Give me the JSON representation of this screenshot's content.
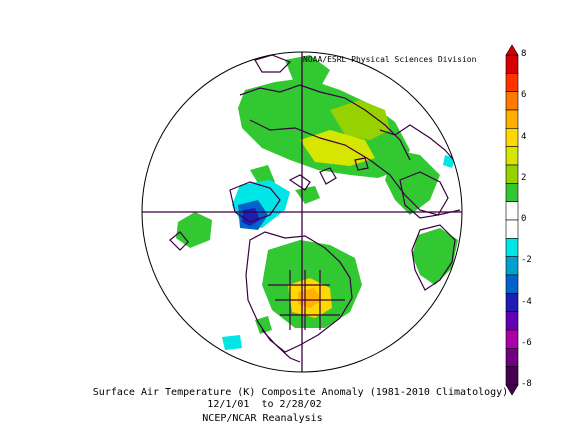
{
  "map": {
    "credit": "NOAA/ESRL Physical Sciences Division",
    "caption_line1": "Surface Air Temperature (K) Composite Anomaly (1981-2010 Climatology)",
    "caption_line2": "12/1/01  to 2/28/02",
    "caption_line3": "NCEP/NCAR Reanalysis",
    "projection": "polar-stereographic-north"
  },
  "colorbar": {
    "tick_labels": [
      "8",
      "6",
      "4",
      "2",
      "0",
      "-2",
      "-4",
      "-6",
      "-8"
    ],
    "colors": [
      "#d70000",
      "#ff3300",
      "#ff7a00",
      "#ffb000",
      "#ffd800",
      "#d7e600",
      "#96d200",
      "#32c832",
      "#ffffff",
      "#ffffff",
      "#00e6e6",
      "#00a0d2",
      "#0064c8",
      "#1e1eb4",
      "#6400b4",
      "#aa00aa",
      "#6e0082",
      "#460050"
    ]
  }
}
